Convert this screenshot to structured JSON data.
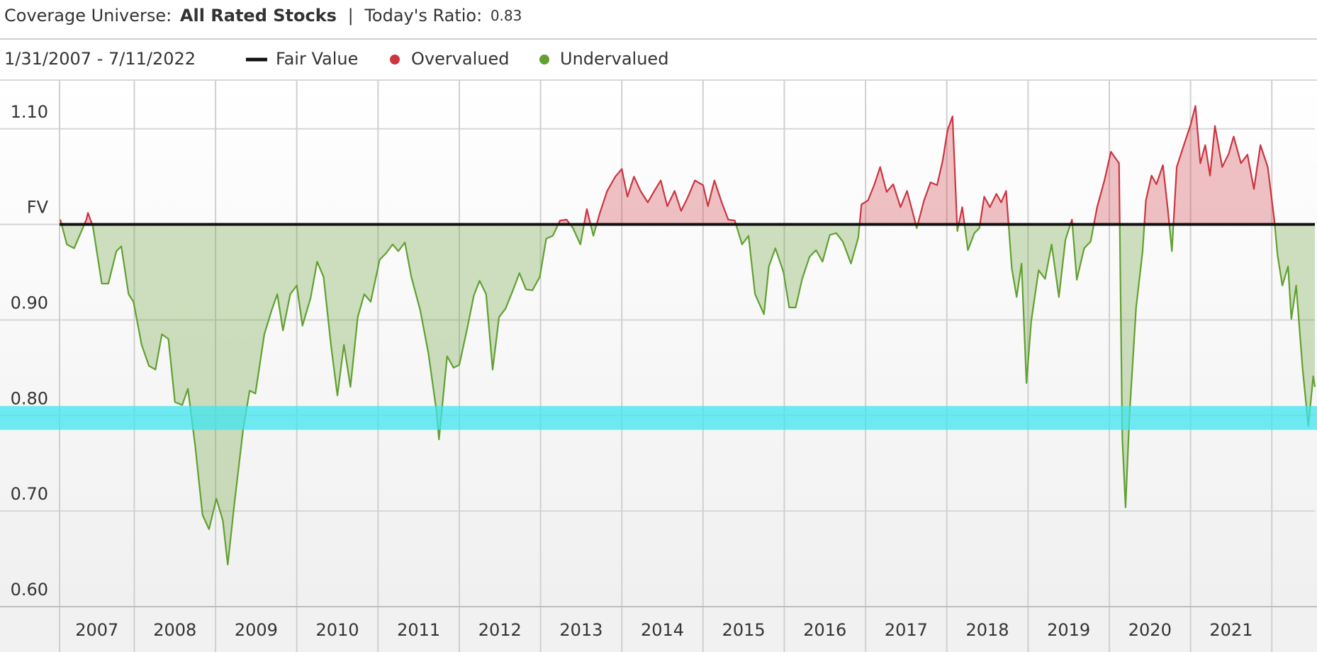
{
  "header": {
    "universe_label": "Coverage Universe:",
    "universe": "All Rated Stocks",
    "separator": "|",
    "ratio_label": "Today's Ratio:",
    "ratio": 0.83
  },
  "chart_data": {
    "type": "line",
    "date_range": "1/31/2007 - 7/11/2022",
    "legend": [
      {
        "name": "Fair Value",
        "color": "#111111"
      },
      {
        "name": "Overvalued",
        "color": "#cc3440"
      },
      {
        "name": "Undervalued",
        "color": "#62a032"
      }
    ],
    "fair_value": 1.0,
    "band": {
      "range": [
        0.785,
        0.81
      ],
      "color": "#3fe6ef"
    },
    "xlim": [
      2007.08,
      2022.53
    ],
    "xticks": [
      {
        "value": 2007,
        "label": "2007"
      },
      {
        "value": 2008,
        "label": "2008"
      },
      {
        "value": 2009,
        "label": "2009"
      },
      {
        "value": 2010,
        "label": "2010"
      },
      {
        "value": 2011,
        "label": "2011"
      },
      {
        "value": 2012,
        "label": "2012"
      },
      {
        "value": 2013,
        "label": "2013"
      },
      {
        "value": 2014,
        "label": "2014"
      },
      {
        "value": 2015,
        "label": "2015"
      },
      {
        "value": 2016,
        "label": "2016"
      },
      {
        "value": 2017,
        "label": "2017"
      },
      {
        "value": 2018,
        "label": "2018"
      },
      {
        "value": 2019,
        "label": "2019"
      },
      {
        "value": 2020,
        "label": "2020"
      },
      {
        "value": 2021,
        "label": "2021"
      }
    ],
    "ylim": [
      0.6,
      1.151
    ],
    "yticks": [
      {
        "value": 0.6,
        "label": "0.60"
      },
      {
        "value": 0.7,
        "label": "0.70"
      },
      {
        "value": 0.8,
        "label": "0.80"
      },
      {
        "value": 0.9,
        "label": "0.90"
      },
      {
        "value": 1.0,
        "label": "FV"
      },
      {
        "value": 1.1,
        "label": "1.10"
      }
    ],
    "grid": true,
    "x": [
      2007.09,
      2007.17,
      2007.26,
      2007.41,
      2007.43,
      2007.49,
      2007.6,
      2007.68,
      2007.78,
      2007.84,
      2007.93,
      2007.99,
      2008.09,
      2008.18,
      2008.26,
      2008.34,
      2008.42,
      2008.5,
      2008.59,
      2008.66,
      2008.75,
      2008.84,
      2008.92,
      2009.01,
      2009.09,
      2009.15,
      2009.23,
      2009.34,
      2009.42,
      2009.49,
      2009.6,
      2009.69,
      2009.76,
      2009.83,
      2009.92,
      2010.0,
      2010.07,
      2010.17,
      2010.25,
      2010.33,
      2010.42,
      2010.5,
      2010.58,
      2010.66,
      2010.75,
      2010.83,
      2010.91,
      2011.02,
      2011.1,
      2011.18,
      2011.25,
      2011.33,
      2011.41,
      2011.52,
      2011.62,
      2011.72,
      2011.75,
      2011.85,
      2011.93,
      2012.0,
      2012.1,
      2012.18,
      2012.25,
      2012.33,
      2012.41,
      2012.49,
      2012.57,
      2012.66,
      2012.74,
      2012.82,
      2012.9,
      2012.99,
      2013.07,
      2013.15,
      2013.24,
      2013.32,
      2013.4,
      2013.49,
      2013.57,
      2013.65,
      2013.73,
      2013.82,
      2013.92,
      2014.0,
      2014.07,
      2014.15,
      2014.23,
      2014.32,
      2014.4,
      2014.48,
      2014.56,
      2014.65,
      2014.73,
      2014.81,
      2014.9,
      2015.0,
      2015.06,
      2015.14,
      2015.23,
      2015.31,
      2015.39,
      2015.48,
      2015.56,
      2015.64,
      2015.75,
      2015.81,
      2015.89,
      2015.99,
      2016.06,
      2016.14,
      2016.22,
      2016.31,
      2016.39,
      2016.47,
      2016.56,
      2016.64,
      2016.72,
      2016.82,
      2016.91,
      2016.95,
      2017.03,
      2017.11,
      2017.18,
      2017.26,
      2017.34,
      2017.43,
      2017.51,
      2017.57,
      2017.63,
      2017.72,
      2017.8,
      2017.88,
      2017.95,
      2018.01,
      2018.07,
      2018.13,
      2018.19,
      2018.26,
      2018.34,
      2018.4,
      2018.46,
      2018.53,
      2018.61,
      2018.67,
      2018.73,
      2018.8,
      2018.86,
      2018.92,
      2018.98,
      2019.04,
      2019.13,
      2019.21,
      2019.29,
      2019.38,
      2019.46,
      2019.54,
      2019.6,
      2019.69,
      2019.77,
      2019.85,
      2019.94,
      2020.02,
      2020.12,
      2020.16,
      2020.2,
      2020.25,
      2020.33,
      2020.41,
      2020.45,
      2020.52,
      2020.58,
      2020.66,
      2020.72,
      2020.77,
      2020.83,
      2020.91,
      2021.0,
      2021.06,
      2021.12,
      2021.18,
      2021.24,
      2021.3,
      2021.39,
      2021.47,
      2021.53,
      2021.62,
      2021.7,
      2021.78,
      2021.86,
      2021.95,
      2022.03,
      2022.07,
      2022.13,
      2022.2,
      2022.24,
      2022.3,
      2022.38,
      2022.45,
      2022.51,
      2022.53
    ],
    "values": [
      1.005,
      0.979,
      0.975,
      1.005,
      1.012,
      0.998,
      0.938,
      0.938,
      0.972,
      0.977,
      0.927,
      0.919,
      0.874,
      0.852,
      0.848,
      0.885,
      0.88,
      0.814,
      0.811,
      0.828,
      0.768,
      0.696,
      0.681,
      0.713,
      0.69,
      0.644,
      0.706,
      0.786,
      0.826,
      0.823,
      0.885,
      0.91,
      0.927,
      0.889,
      0.927,
      0.936,
      0.894,
      0.923,
      0.961,
      0.945,
      0.874,
      0.821,
      0.874,
      0.83,
      0.903,
      0.927,
      0.919,
      0.963,
      0.97,
      0.979,
      0.972,
      0.981,
      0.945,
      0.91,
      0.865,
      0.804,
      0.775,
      0.862,
      0.85,
      0.853,
      0.892,
      0.926,
      0.941,
      0.927,
      0.848,
      0.903,
      0.912,
      0.931,
      0.949,
      0.932,
      0.931,
      0.945,
      0.985,
      0.988,
      1.004,
      1.005,
      0.996,
      0.979,
      1.016,
      0.988,
      1.012,
      1.035,
      1.05,
      1.058,
      1.029,
      1.05,
      1.035,
      1.023,
      1.035,
      1.046,
      1.019,
      1.035,
      1.014,
      1.028,
      1.046,
      1.041,
      1.019,
      1.046,
      1.023,
      1.005,
      1.004,
      0.979,
      0.988,
      0.927,
      0.906,
      0.956,
      0.975,
      0.95,
      0.913,
      0.913,
      0.943,
      0.966,
      0.973,
      0.961,
      0.989,
      0.991,
      0.982,
      0.959,
      0.986,
      1.021,
      1.025,
      1.042,
      1.06,
      1.034,
      1.042,
      1.018,
      1.035,
      1.016,
      0.996,
      1.025,
      1.044,
      1.041,
      1.067,
      1.099,
      1.113,
      0.993,
      1.018,
      0.973,
      0.991,
      0.996,
      1.029,
      1.018,
      1.032,
      1.023,
      1.035,
      0.954,
      0.924,
      0.959,
      0.834,
      0.899,
      0.952,
      0.943,
      0.979,
      0.924,
      0.984,
      1.005,
      0.942,
      0.975,
      0.982,
      1.018,
      1.046,
      1.076,
      1.064,
      0.777,
      0.704,
      0.802,
      0.913,
      0.972,
      1.025,
      1.051,
      1.042,
      1.062,
      1.016,
      0.972,
      1.06,
      1.081,
      1.104,
      1.124,
      1.064,
      1.083,
      1.051,
      1.103,
      1.06,
      1.074,
      1.092,
      1.064,
      1.073,
      1.037,
      1.083,
      1.06,
      1.005,
      0.968,
      0.936,
      0.956,
      0.901,
      0.936,
      0.848,
      0.789,
      0.841,
      0.83
    ]
  }
}
